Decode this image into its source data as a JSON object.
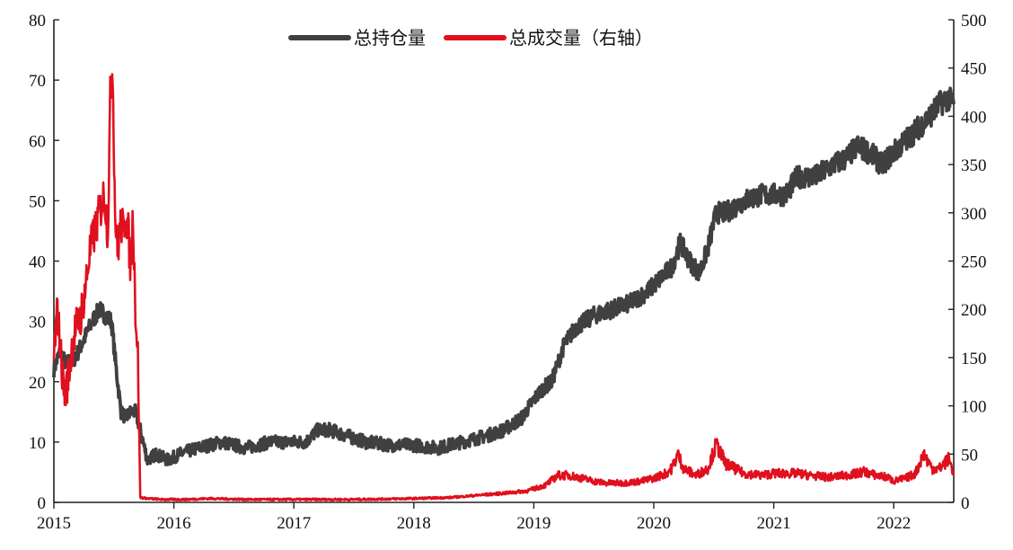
{
  "chart_data": {
    "type": "line",
    "title": "",
    "legend": {
      "position": "top-center",
      "entries": [
        {
          "name": "总持仓量",
          "color": "#404040",
          "axis": "left"
        },
        {
          "name": "总成交量（右轴）",
          "color": "#e0101e",
          "axis": "right"
        }
      ]
    },
    "grid": false,
    "x_axis": {
      "ticks": [
        "2015",
        "2016",
        "2017",
        "2018",
        "2019",
        "2020",
        "2021",
        "2022"
      ],
      "range": [
        2015.0,
        2022.5
      ]
    },
    "y_left": {
      "range": [
        0,
        80
      ],
      "ticks": [
        "0",
        "10",
        "20",
        "30",
        "40",
        "50",
        "60",
        "70",
        "80"
      ]
    },
    "y_right": {
      "range": [
        0,
        500
      ],
      "ticks": [
        "0",
        "50",
        "100",
        "150",
        "200",
        "250",
        "300",
        "350",
        "400",
        "450",
        "500"
      ]
    },
    "series": [
      {
        "name": "总持仓量",
        "axis": "left",
        "color": "#404040",
        "x": [
          2015.0,
          2015.05,
          2015.1,
          2015.18,
          2015.25,
          2015.32,
          2015.38,
          2015.43,
          2015.48,
          2015.52,
          2015.56,
          2015.6,
          2015.64,
          2015.68,
          2015.72,
          2015.78,
          2015.85,
          2015.95,
          2016.05,
          2016.2,
          2016.4,
          2016.6,
          2016.8,
          2017.0,
          2017.1,
          2017.2,
          2017.3,
          2017.45,
          2017.6,
          2017.8,
          2018.0,
          2018.2,
          2018.4,
          2018.6,
          2018.75,
          2018.9,
          2019.0,
          2019.08,
          2019.15,
          2019.25,
          2019.35,
          2019.5,
          2019.65,
          2019.8,
          2019.95,
          2020.05,
          2020.15,
          2020.22,
          2020.3,
          2020.38,
          2020.45,
          2020.52,
          2020.6,
          2020.75,
          2020.9,
          2021.0,
          2021.1,
          2021.2,
          2021.35,
          2021.5,
          2021.6,
          2021.7,
          2021.8,
          2021.9,
          2022.0,
          2022.1,
          2022.2,
          2022.3,
          2022.38,
          2022.45,
          2022.5
        ],
        "y": [
          22,
          25,
          23,
          24,
          27,
          30,
          32,
          31,
          30,
          22,
          15,
          14,
          15,
          15,
          12,
          7,
          8,
          7,
          8,
          9,
          10,
          9,
          10,
          10,
          10,
          12,
          12,
          11,
          10,
          9.5,
          9.5,
          9,
          10,
          11,
          12,
          14,
          17,
          19,
          20,
          26,
          29,
          31,
          32,
          33,
          35,
          37,
          39,
          43,
          40,
          38,
          42,
          48,
          48,
          50,
          51,
          51,
          51,
          54,
          54,
          56,
          57,
          59,
          58,
          56,
          58,
          60,
          62,
          64,
          66,
          67,
          66
        ]
      },
      {
        "name": "总成交量（右轴）",
        "axis": "right",
        "color": "#e0101e",
        "x": [
          2015.0,
          2015.03,
          2015.06,
          2015.09,
          2015.12,
          2015.15,
          2015.18,
          2015.22,
          2015.26,
          2015.3,
          2015.34,
          2015.38,
          2015.42,
          2015.45,
          2015.47,
          2015.49,
          2015.51,
          2015.53,
          2015.56,
          2015.58,
          2015.6,
          2015.62,
          2015.64,
          2015.66,
          2015.68,
          2015.7,
          2015.72,
          2015.78,
          2015.9,
          2016.1,
          2016.3,
          2016.6,
          2017.0,
          2017.5,
          2018.0,
          2018.3,
          2018.6,
          2018.8,
          2018.95,
          2019.0,
          2019.1,
          2019.2,
          2019.3,
          2019.4,
          2019.5,
          2019.6,
          2019.75,
          2019.9,
          2020.0,
          2020.1,
          2020.15,
          2020.2,
          2020.25,
          2020.35,
          2020.45,
          2020.52,
          2020.6,
          2020.75,
          2020.9,
          2021.0,
          2021.1,
          2021.2,
          2021.3,
          2021.45,
          2021.6,
          2021.7,
          2021.75,
          2021.85,
          2021.95,
          2022.0,
          2022.1,
          2022.18,
          2022.25,
          2022.32,
          2022.38,
          2022.42,
          2022.46,
          2022.5
        ],
        "y": [
          150,
          200,
          150,
          110,
          130,
          160,
          180,
          190,
          220,
          260,
          280,
          300,
          320,
          280,
          420,
          450,
          300,
          260,
          290,
          280,
          300,
          280,
          240,
          300,
          200,
          150,
          5,
          4,
          3,
          3,
          4,
          3,
          3,
          3,
          4,
          5,
          8,
          10,
          12,
          14,
          18,
          28,
          28,
          25,
          22,
          20,
          20,
          22,
          25,
          30,
          35,
          50,
          35,
          28,
          35,
          60,
          40,
          30,
          28,
          30,
          30,
          30,
          28,
          26,
          28,
          30,
          32,
          28,
          26,
          22,
          25,
          30,
          50,
          35,
          35,
          40,
          45,
          30
        ]
      }
    ]
  }
}
